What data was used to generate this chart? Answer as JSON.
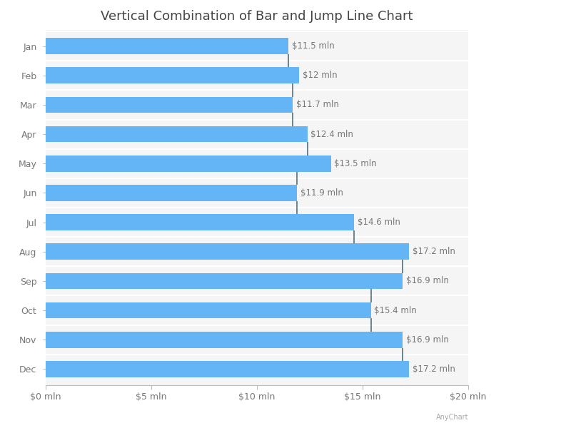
{
  "title": "Vertical Combination of Bar and Jump Line Chart",
  "months": [
    "Jan",
    "Feb",
    "Mar",
    "Apr",
    "May",
    "Jun",
    "Jul",
    "Aug",
    "Sep",
    "Oct",
    "Nov",
    "Dec"
  ],
  "bar_values": [
    11.5,
    12.0,
    11.7,
    12.4,
    13.5,
    11.9,
    14.6,
    17.2,
    16.9,
    15.4,
    16.9,
    17.2
  ],
  "labels": [
    "$11.5 mln",
    "$12 mln",
    "$11.7 mln",
    "$12.4 mln",
    "$13.5 mln",
    "$11.9 mln",
    "$14.6 mln",
    "$17.2 mln",
    "$16.9 mln",
    "$15.4 mln",
    "$16.9 mln",
    "$17.2 mln"
  ],
  "bar_color": "#64b5f6",
  "line_color": "#546e7a",
  "plot_bg_color": "#f5f5f5",
  "background_color": "#ffffff",
  "xlim": [
    0,
    20
  ],
  "xticks": [
    0,
    5,
    10,
    15,
    20
  ],
  "xtick_labels": [
    "$0 mln",
    "$5 mln",
    "$10 mln",
    "$15 mln",
    "$20 mln"
  ],
  "title_fontsize": 13,
  "label_fontsize": 8.5,
  "tick_fontsize": 9,
  "bar_height": 0.55,
  "watermark": "AnyChart"
}
